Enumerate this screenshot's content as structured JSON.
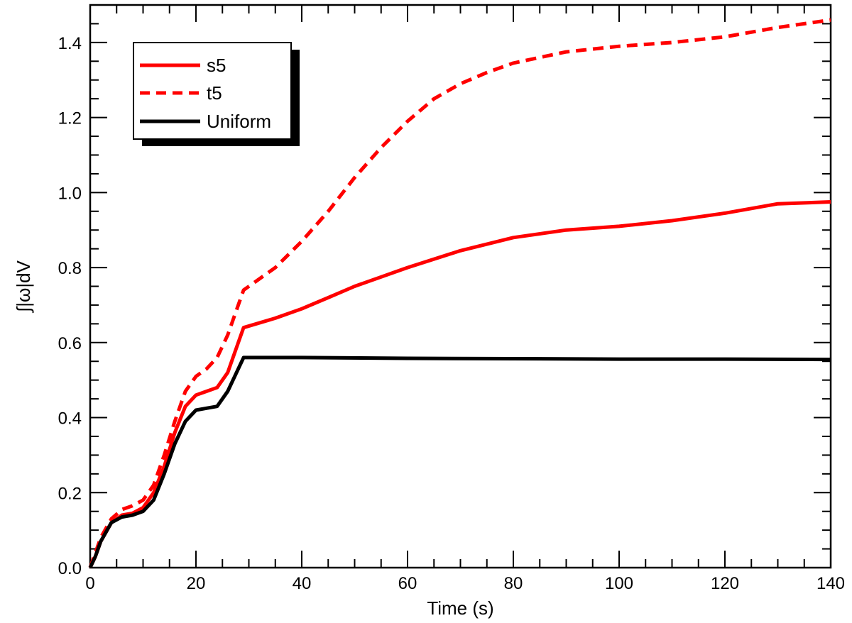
{
  "chart_data": {
    "type": "line",
    "xlabel": "Time (s)",
    "ylabel": "∫|ω|dV",
    "xlim": [
      0,
      140
    ],
    "ylim": [
      0,
      1.5
    ],
    "x_ticks": [
      "0",
      "20",
      "40",
      "60",
      "80",
      "100",
      "120",
      "140"
    ],
    "y_ticks": [
      "0.0",
      "0.2",
      "0.4",
      "0.6",
      "0.8",
      "1.0",
      "1.2",
      "1.4"
    ],
    "grid": false,
    "legend": {
      "placement": "top-left",
      "entries": [
        "s5",
        "t5",
        "Uniform"
      ]
    },
    "series": [
      {
        "name": "s5",
        "color": "#ff0000",
        "dash": "solid",
        "points": [
          [
            0,
            0
          ],
          [
            1,
            0.03
          ],
          [
            2,
            0.07
          ],
          [
            4,
            0.12
          ],
          [
            6,
            0.14
          ],
          [
            8,
            0.145
          ],
          [
            10,
            0.16
          ],
          [
            12,
            0.2
          ],
          [
            14,
            0.27
          ],
          [
            16,
            0.36
          ],
          [
            18,
            0.43
          ],
          [
            20,
            0.46
          ],
          [
            22,
            0.47
          ],
          [
            24,
            0.48
          ],
          [
            26,
            0.52
          ],
          [
            28,
            0.6
          ],
          [
            29,
            0.64
          ],
          [
            35,
            0.665
          ],
          [
            40,
            0.69
          ],
          [
            45,
            0.72
          ],
          [
            50,
            0.75
          ],
          [
            55,
            0.775
          ],
          [
            60,
            0.8
          ],
          [
            70,
            0.845
          ],
          [
            80,
            0.88
          ],
          [
            90,
            0.9
          ],
          [
            100,
            0.91
          ],
          [
            110,
            0.925
          ],
          [
            120,
            0.945
          ],
          [
            130,
            0.97
          ],
          [
            140,
            0.975
          ]
        ]
      },
      {
        "name": "t5",
        "color": "#ff0000",
        "dash": "dashed",
        "points": [
          [
            0,
            0
          ],
          [
            1,
            0.04
          ],
          [
            2,
            0.08
          ],
          [
            4,
            0.13
          ],
          [
            6,
            0.155
          ],
          [
            8,
            0.165
          ],
          [
            10,
            0.18
          ],
          [
            12,
            0.22
          ],
          [
            14,
            0.3
          ],
          [
            16,
            0.39
          ],
          [
            18,
            0.47
          ],
          [
            20,
            0.51
          ],
          [
            22,
            0.53
          ],
          [
            24,
            0.56
          ],
          [
            26,
            0.62
          ],
          [
            28,
            0.7
          ],
          [
            29,
            0.74
          ],
          [
            35,
            0.8
          ],
          [
            40,
            0.87
          ],
          [
            45,
            0.95
          ],
          [
            50,
            1.04
          ],
          [
            55,
            1.12
          ],
          [
            60,
            1.19
          ],
          [
            65,
            1.25
          ],
          [
            70,
            1.29
          ],
          [
            75,
            1.32
          ],
          [
            80,
            1.345
          ],
          [
            90,
            1.375
          ],
          [
            100,
            1.39
          ],
          [
            110,
            1.4
          ],
          [
            120,
            1.415
          ],
          [
            130,
            1.44
          ],
          [
            140,
            1.46
          ]
        ]
      },
      {
        "name": "Uniform",
        "color": "#000000",
        "dash": "solid",
        "points": [
          [
            0,
            0
          ],
          [
            1,
            0.03
          ],
          [
            2,
            0.07
          ],
          [
            4,
            0.12
          ],
          [
            6,
            0.135
          ],
          [
            8,
            0.14
          ],
          [
            10,
            0.15
          ],
          [
            12,
            0.18
          ],
          [
            14,
            0.25
          ],
          [
            16,
            0.33
          ],
          [
            18,
            0.39
          ],
          [
            20,
            0.42
          ],
          [
            22,
            0.425
          ],
          [
            24,
            0.43
          ],
          [
            26,
            0.47
          ],
          [
            28,
            0.53
          ],
          [
            29,
            0.56
          ],
          [
            35,
            0.56
          ],
          [
            40,
            0.56
          ],
          [
            60,
            0.558
          ],
          [
            80,
            0.557
          ],
          [
            100,
            0.556
          ],
          [
            120,
            0.556
          ],
          [
            140,
            0.555
          ]
        ]
      }
    ]
  }
}
